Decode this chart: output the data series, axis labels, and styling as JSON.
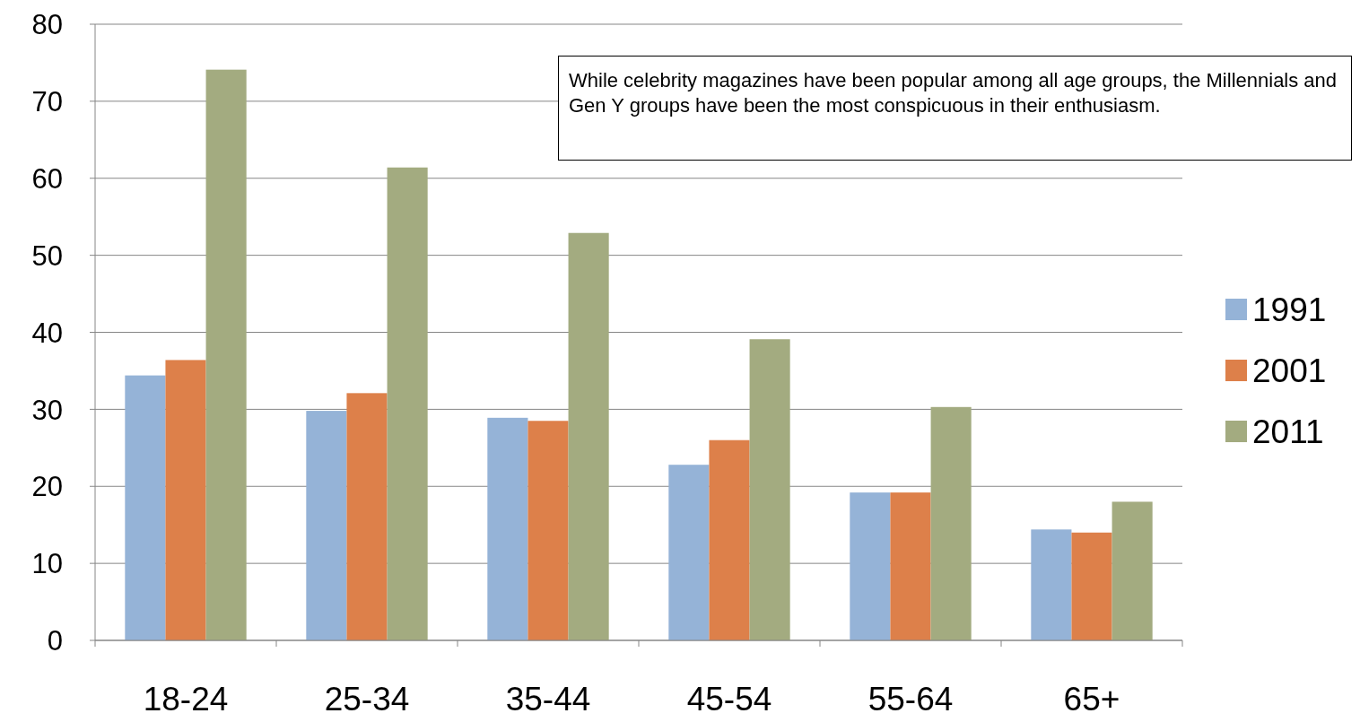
{
  "chart_data": {
    "type": "bar",
    "categories": [
      "18-24",
      "25-34",
      "35-44",
      "45-54",
      "55-64",
      "65+"
    ],
    "series": [
      {
        "name": "1991",
        "color": "#95b3d7",
        "values": [
          34.4,
          29.8,
          28.9,
          22.8,
          19.2,
          14.4
        ]
      },
      {
        "name": "2001",
        "color": "#dd804a",
        "values": [
          36.4,
          32.1,
          28.5,
          26.0,
          19.2,
          14.0
        ]
      },
      {
        "name": "2011",
        "color": "#a3ab80",
        "values": [
          74.1,
          61.4,
          52.9,
          39.1,
          30.3,
          18.0
        ]
      }
    ],
    "ylim": [
      0,
      80
    ],
    "yticks": [
      0,
      10,
      20,
      30,
      40,
      50,
      60,
      70,
      80
    ],
    "grid": "y",
    "legend": "right",
    "annotations": [
      "While celebrity magazines have been popular among all age groups, the Millennials and Gen Y groups have been the most conspicuous in their enthusiasm."
    ]
  }
}
